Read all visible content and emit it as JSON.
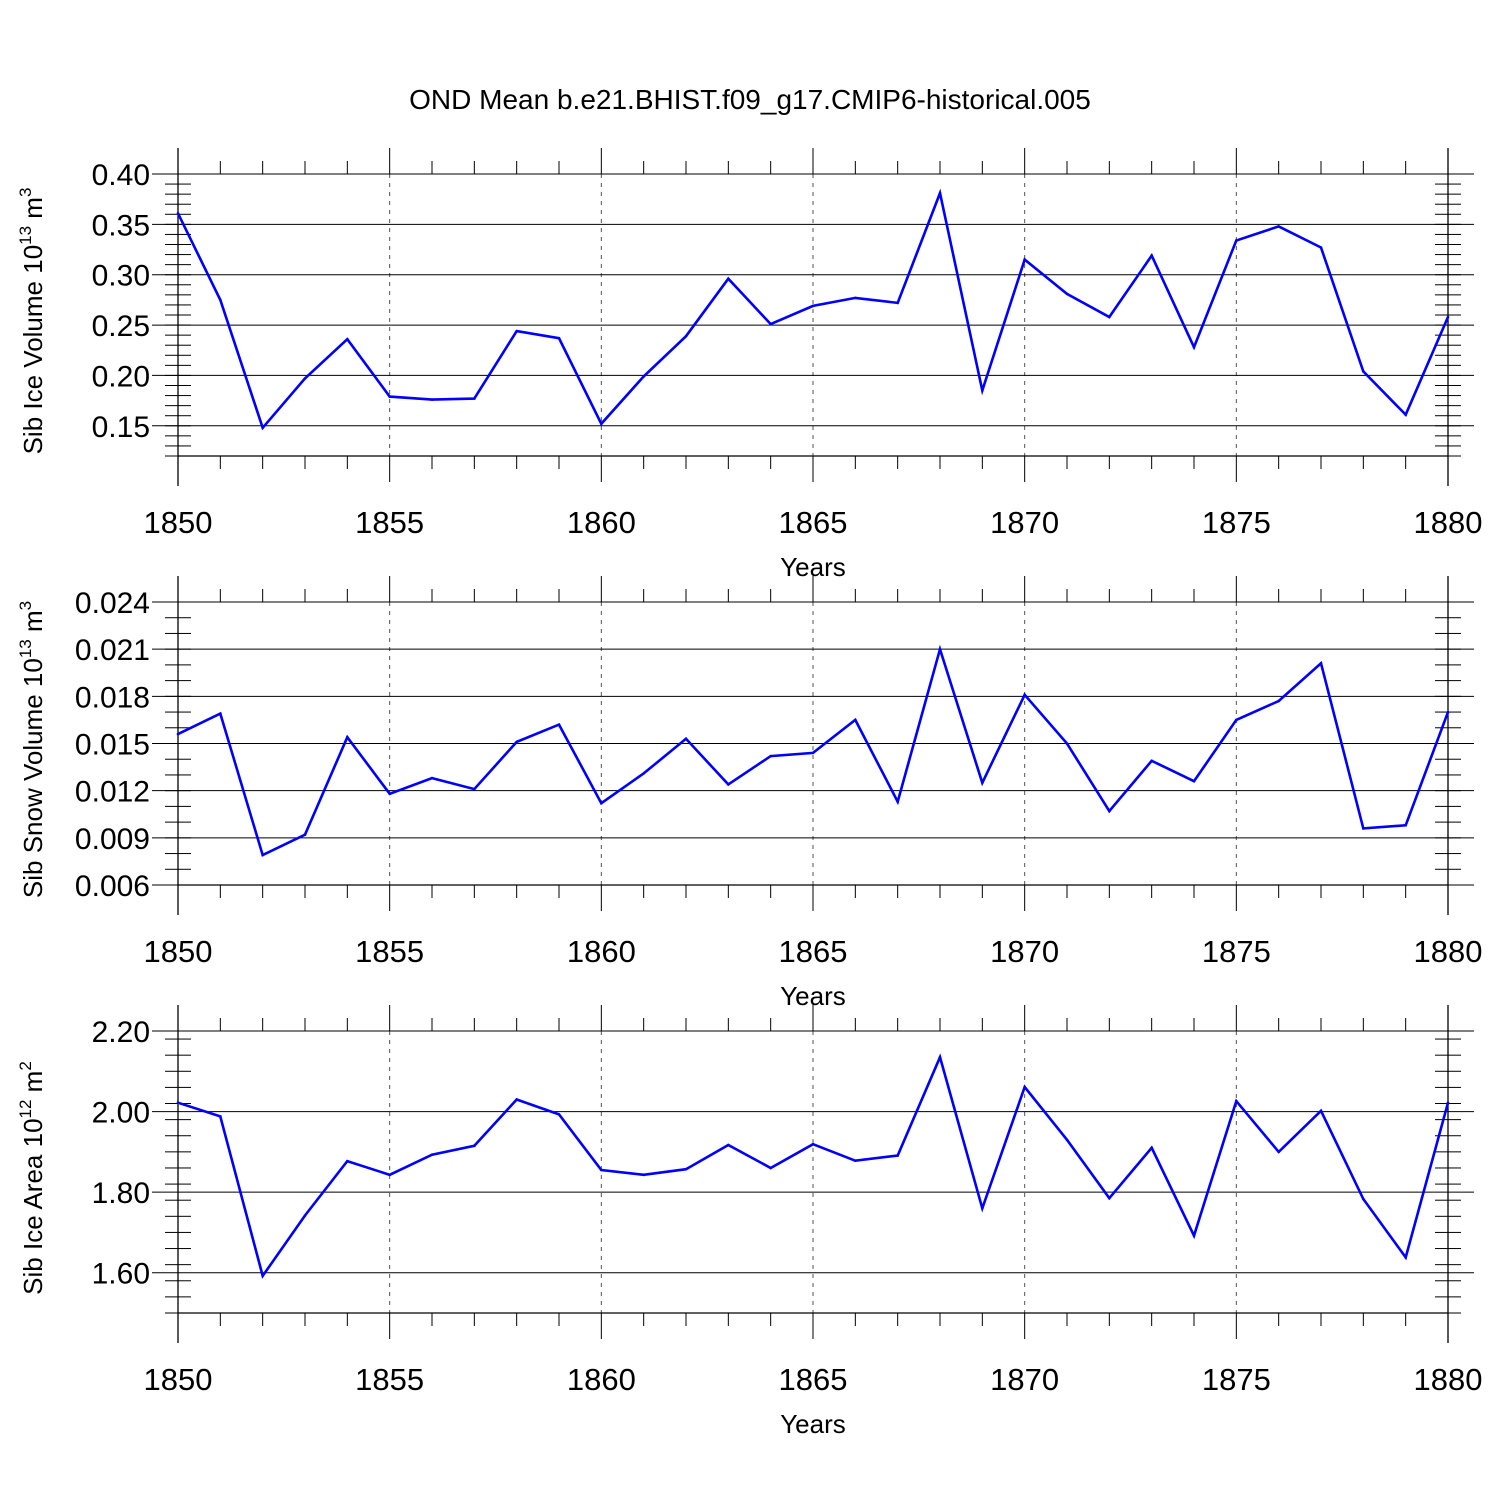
{
  "title": "OND Mean b.e21.BHIST.f09_g17.CMIP6-historical.005",
  "chart_data": [
    {
      "type": "line",
      "ylabel": {
        "main": "Sib Ice Volume 10",
        "exp": "13",
        "unit": " m",
        "unit_exp": "3"
      },
      "xlabel": "Years",
      "xlim": [
        1850,
        1880
      ],
      "ylim": [
        0.12,
        0.4
      ],
      "yticks": [
        0.15,
        0.2,
        0.25,
        0.3,
        0.35,
        0.4
      ],
      "ytick_labels": [
        "0.15",
        "0.20",
        "0.25",
        "0.30",
        "0.35",
        "0.40"
      ],
      "yminor": 0.01,
      "xticks": [
        1850,
        1855,
        1860,
        1865,
        1870,
        1875,
        1880
      ],
      "xtick_labels": [
        "1850",
        "1855",
        "1860",
        "1865",
        "1870",
        "1875",
        "1880"
      ],
      "grid": "dashed vertical at major x ticks",
      "color": "#0000ff",
      "x": [
        1850,
        1851,
        1852,
        1853,
        1854,
        1855,
        1856,
        1857,
        1858,
        1859,
        1860,
        1861,
        1862,
        1863,
        1864,
        1865,
        1866,
        1867,
        1868,
        1869,
        1870,
        1871,
        1872,
        1873,
        1874,
        1875,
        1876,
        1877,
        1878,
        1879,
        1880
      ],
      "values": [
        0.361,
        0.275,
        0.148,
        0.197,
        0.236,
        0.179,
        0.176,
        0.177,
        0.244,
        0.237,
        0.152,
        0.199,
        0.239,
        0.296,
        0.251,
        0.269,
        0.277,
        0.272,
        0.381,
        0.185,
        0.315,
        0.281,
        0.258,
        0.319,
        0.228,
        0.334,
        0.348,
        0.327,
        0.204,
        0.161,
        0.258
      ]
    },
    {
      "type": "line",
      "ylabel": {
        "main": "Sib Snow Volume 10",
        "exp": "13",
        "unit": " m",
        "unit_exp": "3"
      },
      "xlabel": "Years",
      "xlim": [
        1850,
        1880
      ],
      "ylim": [
        0.006,
        0.024
      ],
      "yticks": [
        0.006,
        0.009,
        0.012,
        0.015,
        0.018,
        0.021,
        0.024
      ],
      "ytick_labels": [
        "0.006",
        "0.009",
        "0.012",
        "0.015",
        "0.018",
        "0.021",
        "0.024"
      ],
      "yminor": 0.001,
      "xticks": [
        1850,
        1855,
        1860,
        1865,
        1870,
        1875,
        1880
      ],
      "xtick_labels": [
        "1850",
        "1855",
        "1860",
        "1865",
        "1870",
        "1875",
        "1880"
      ],
      "grid": "dashed vertical at major x ticks",
      "color": "#0000ff",
      "x": [
        1850,
        1851,
        1852,
        1853,
        1854,
        1855,
        1856,
        1857,
        1858,
        1859,
        1860,
        1861,
        1862,
        1863,
        1864,
        1865,
        1866,
        1867,
        1868,
        1869,
        1870,
        1871,
        1872,
        1873,
        1874,
        1875,
        1876,
        1877,
        1878,
        1879,
        1880
      ],
      "values": [
        0.0156,
        0.0169,
        0.0079,
        0.0092,
        0.0154,
        0.0118,
        0.0128,
        0.0121,
        0.0151,
        0.0162,
        0.0112,
        0.0131,
        0.0153,
        0.0124,
        0.0142,
        0.0144,
        0.0165,
        0.0113,
        0.021,
        0.0125,
        0.0181,
        0.015,
        0.0107,
        0.0139,
        0.0126,
        0.0165,
        0.0177,
        0.0201,
        0.0096,
        0.0098,
        0.017
      ]
    },
    {
      "type": "line",
      "ylabel": {
        "main": "Sib Ice Area 10",
        "exp": "12",
        "unit": " m",
        "unit_exp": "2"
      },
      "xlabel": "Years",
      "xlim": [
        1850,
        1880
      ],
      "ylim": [
        1.5,
        2.2
      ],
      "yticks": [
        1.6,
        1.8,
        2.0,
        2.2
      ],
      "ytick_labels": [
        "1.60",
        "1.80",
        "2.00",
        "2.20"
      ],
      "yminor": 0.04,
      "xticks": [
        1850,
        1855,
        1860,
        1865,
        1870,
        1875,
        1880
      ],
      "xtick_labels": [
        "1850",
        "1855",
        "1860",
        "1865",
        "1870",
        "1875",
        "1880"
      ],
      "grid": "dashed vertical at major x ticks",
      "color": "#0000ff",
      "x": [
        1850,
        1851,
        1852,
        1853,
        1854,
        1855,
        1856,
        1857,
        1858,
        1859,
        1860,
        1861,
        1862,
        1863,
        1864,
        1865,
        1866,
        1867,
        1868,
        1869,
        1870,
        1871,
        1872,
        1873,
        1874,
        1875,
        1876,
        1877,
        1878,
        1879,
        1880
      ],
      "values": [
        2.022,
        1.988,
        1.592,
        1.742,
        1.877,
        1.843,
        1.893,
        1.915,
        2.03,
        1.993,
        1.855,
        1.843,
        1.857,
        1.917,
        1.86,
        1.919,
        1.878,
        1.891,
        2.135,
        1.76,
        2.061,
        1.93,
        1.785,
        1.91,
        1.692,
        2.026,
        1.9,
        2.002,
        1.783,
        1.638,
        2.022
      ]
    }
  ]
}
